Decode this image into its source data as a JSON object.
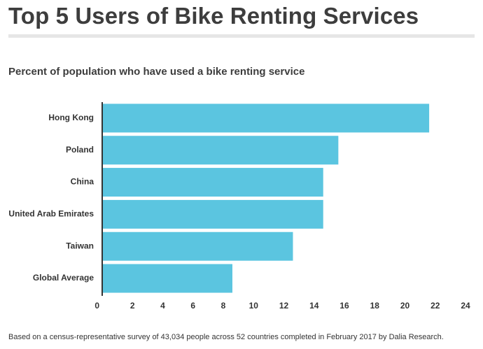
{
  "title": "Top 5 Users of Bike Renting Services",
  "subtitle": "Percent of population who have used a bike renting service",
  "footnote": "Based on a census-representative survey of 43,034 people across 52 countries completed in February 2017 by Dalia Research.",
  "colors": {
    "bar": "#5bc5e0",
    "axis": "#333333",
    "title_rule": "#e6e6e6"
  },
  "chart_data": {
    "type": "bar",
    "orientation": "horizontal",
    "title": "Top 5 Users of Bike Renting Services",
    "subtitle": "Percent of population who have used a bike renting service",
    "categories": [
      "Hong Kong",
      "Poland",
      "China",
      "United Arab Emirates",
      "Taiwan",
      "Global Average"
    ],
    "values": [
      21.6,
      15.6,
      14.6,
      14.6,
      12.6,
      8.6
    ],
    "xlabel": "",
    "ylabel": "",
    "xlim": [
      0,
      24
    ],
    "xticks": [
      0,
      2,
      4,
      6,
      8,
      10,
      12,
      14,
      16,
      18,
      20,
      22,
      24
    ],
    "grid": false,
    "legend": "none"
  }
}
